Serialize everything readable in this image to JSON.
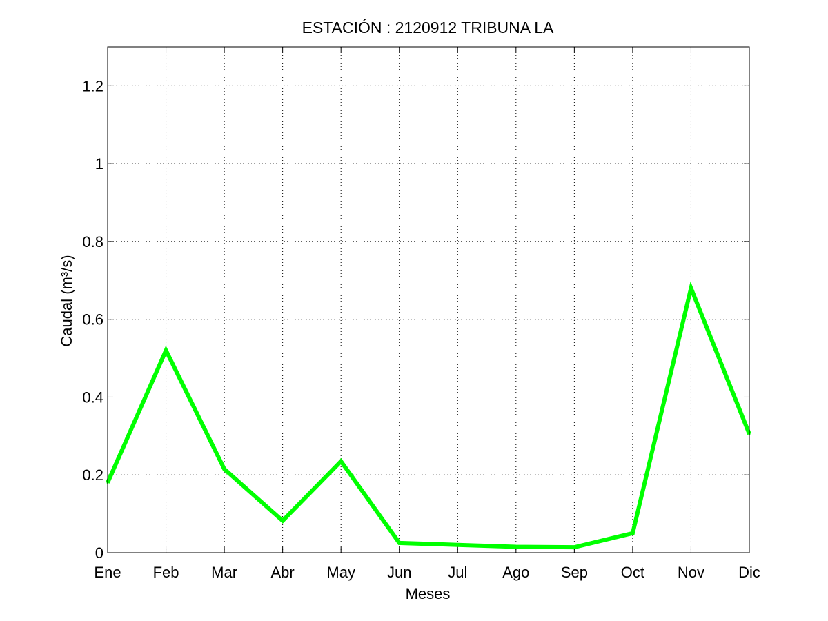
{
  "chart_data": {
    "type": "line",
    "title": "ESTACIÓN :  2120912  TRIBUNA LA",
    "xlabel": "Meses",
    "ylabel": "Caudal (m³/s)",
    "categories": [
      "Ene",
      "Feb",
      "Mar",
      "Abr",
      "May",
      "Jun",
      "Jul",
      "Ago",
      "Sep",
      "Oct",
      "Nov",
      "Dic"
    ],
    "series": [
      {
        "values": [
          0.18,
          0.52,
          0.215,
          0.082,
          0.235,
          0.025,
          0.02,
          0.015,
          0.014,
          0.05,
          0.68,
          0.305
        ],
        "color": "#00ff00"
      }
    ],
    "ylim": [
      0,
      1.3
    ],
    "yticks": [
      0,
      0.2,
      0.4,
      0.6,
      0.8,
      1,
      1.2
    ],
    "ytick_labels": [
      "0",
      "0.2",
      "0.4",
      "0.6",
      "0.8",
      "1",
      "1.2"
    ],
    "grid": true,
    "grid_style": "dotted"
  }
}
